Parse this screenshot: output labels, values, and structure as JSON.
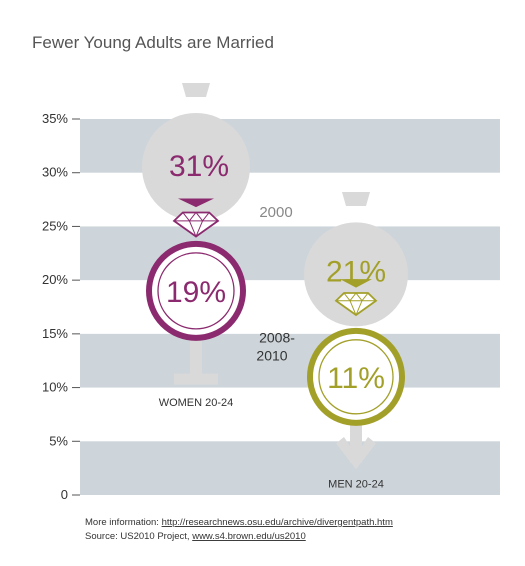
{
  "title": "Fewer Young Adults are Married",
  "chart_data": {
    "type": "pictograph",
    "title": "Fewer Young Adults are Married",
    "ylim": [
      0,
      35
    ],
    "y_ticks": [
      "35%",
      "30%",
      "25%",
      "20%",
      "15%",
      "10%",
      "5%",
      "0"
    ],
    "grid": "alternating horizontal bands",
    "year_labels": {
      "earlier": "2000",
      "later": "2008-2010"
    },
    "groups": [
      {
        "label": "WOMEN 20-24",
        "color": "#8b2a6e",
        "values": {
          "2000": 31,
          "2008-2010": 19
        },
        "value_labels": [
          "31%",
          "19%"
        ]
      },
      {
        "label": "MEN 20-24",
        "color": "#a3a02a",
        "values": {
          "2000": 21,
          "2008-2010": 11
        },
        "value_labels": [
          "21%",
          "11%"
        ]
      }
    ]
  },
  "footer": {
    "more_info_prefix": "More information: ",
    "more_info_link": "http://researchnews.osu.edu/archive/divergentpath.htm",
    "source_prefix": "Source: US2010 Project, ",
    "source_link": "www.s4.brown.edu/us2010"
  }
}
